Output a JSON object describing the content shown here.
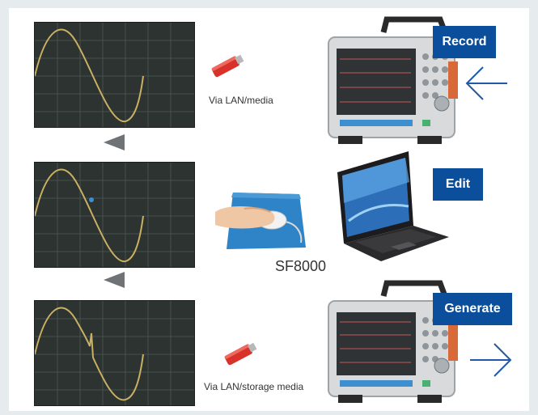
{
  "steps": {
    "record": {
      "tag": "Record",
      "transfer_label": "Via LAN/media"
    },
    "edit": {
      "tag": "Edit",
      "software_label": "SF8000"
    },
    "generate": {
      "tag": "Generate",
      "transfer_label": "Via LAN/storage media"
    }
  },
  "colors": {
    "tag_background": "#0b4f9c",
    "arrow_blue": "#1e5aa8",
    "waveform": "#c9b063",
    "scope_screen": "#2c3330",
    "usb_stick": "#d9322a",
    "mousepad": "#2f84c8"
  },
  "icons": {
    "transfer_media": "usb-stick-icon",
    "recorder": "memory-recorder-icon",
    "computer": "laptop-icon",
    "input": "arrow-left-icon",
    "output": "arrow-right-icon"
  }
}
